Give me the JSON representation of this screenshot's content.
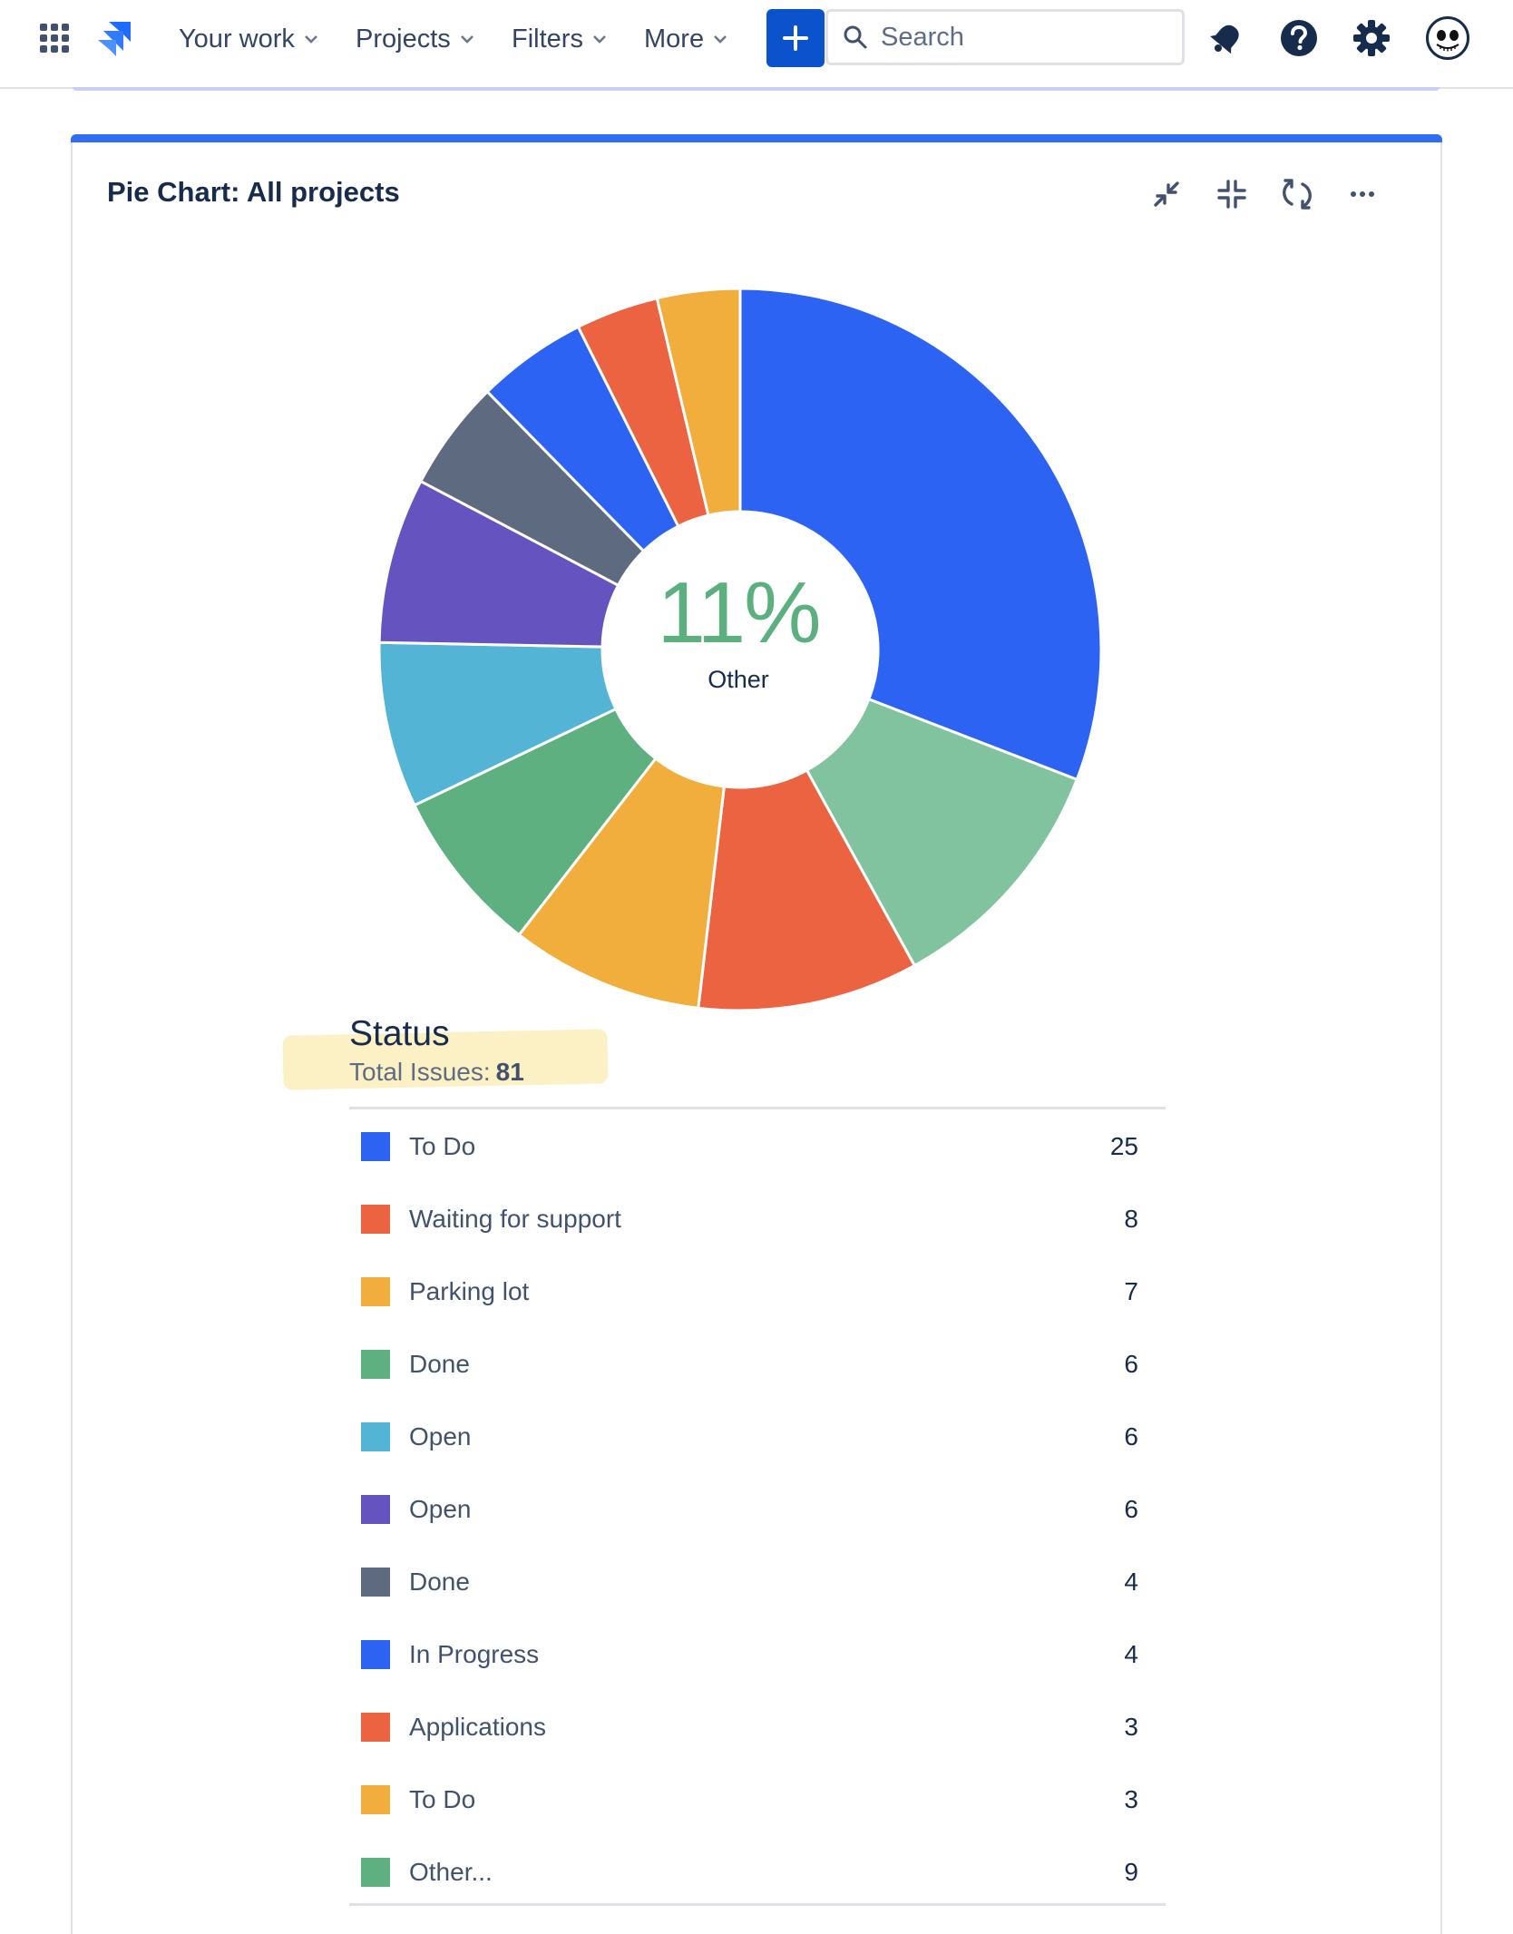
{
  "nav": {
    "items": [
      {
        "label": "Your work"
      },
      {
        "label": "Projects"
      },
      {
        "label": "Filters"
      },
      {
        "label": "More"
      }
    ],
    "search_placeholder": "Search",
    "icons": [
      "app-switcher-icon",
      "jira-logo-icon",
      "plus-icon",
      "search-icon",
      "notifications-icon",
      "help-icon",
      "settings-icon",
      "avatar"
    ]
  },
  "gadget": {
    "title": "Pie Chart: All projects",
    "actions": [
      "minimize-icon",
      "collapse-icon",
      "refresh-icon",
      "more-icon"
    ]
  },
  "chart_data": {
    "type": "pie",
    "title": "Pie Chart: All projects",
    "categories": [
      "To Do",
      "Waiting for support",
      "Parking lot",
      "Done",
      "Open",
      "Open",
      "Done",
      "In Progress",
      "Applications",
      "To Do",
      "Other..."
    ],
    "values": [
      25,
      8,
      7,
      6,
      6,
      6,
      4,
      4,
      3,
      3,
      9
    ],
    "colors": [
      "#2d63f2",
      "#ec6342",
      "#f2ae3d",
      "#5eb080",
      "#53b4d6",
      "#6554c0",
      "#5e6a80",
      "#2d63f2",
      "#ec6342",
      "#f2ae3d",
      "#5eb080"
    ],
    "chart_colors": [
      "#2d63f2",
      "#81c39e",
      "#ec6342",
      "#f2ae3d",
      "#5eb080",
      "#53b4d6",
      "#6554c0",
      "#5e6a80",
      "#2d63f2",
      "#ec6342",
      "#f2ae3d"
    ],
    "center": {
      "value": "11%",
      "label": "Other"
    },
    "legend": "below"
  },
  "legend": {
    "title": "Status",
    "total_label": "Total Issues:",
    "total_value": "81",
    "items": [
      {
        "label": "To Do",
        "count": "25",
        "color": "#2d63f2"
      },
      {
        "label": "Waiting for support",
        "count": "8",
        "color": "#ec6342"
      },
      {
        "label": "Parking lot",
        "count": "7",
        "color": "#f2ae3d"
      },
      {
        "label": "Done",
        "count": "6",
        "color": "#5eb080"
      },
      {
        "label": "Open",
        "count": "6",
        "color": "#53b4d6"
      },
      {
        "label": "Open",
        "count": "6",
        "color": "#6554c0"
      },
      {
        "label": "Done",
        "count": "4",
        "color": "#5e6a80"
      },
      {
        "label": "In Progress",
        "count": "4",
        "color": "#2d63f2"
      },
      {
        "label": "Applications",
        "count": "3",
        "color": "#ec6342"
      },
      {
        "label": "To Do",
        "count": "3",
        "color": "#f2ae3d"
      },
      {
        "label": "Other...",
        "count": "9",
        "color": "#5eb080"
      }
    ]
  },
  "colors": {
    "brand": "#0c52cc",
    "accent": "#2f6ef3",
    "center_text": "#5caf7f",
    "highlight": "#fcf1c4"
  }
}
